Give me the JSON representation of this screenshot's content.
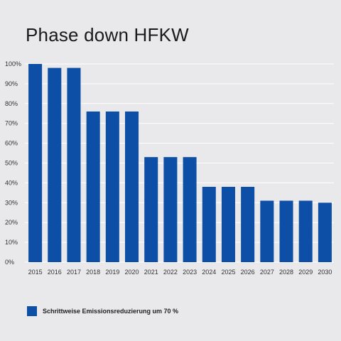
{
  "chart_data": {
    "type": "bar",
    "title": "Phase down HFKW",
    "categories": [
      "2015",
      "2016",
      "2017",
      "2018",
      "2019",
      "2020",
      "2021",
      "2022",
      "2023",
      "2024",
      "2025",
      "2026",
      "2027",
      "2028",
      "2029",
      "2030"
    ],
    "series": [
      {
        "name": "Schrittweise Emissionsreduzierung um 70 %",
        "values": [
          100,
          98,
          98,
          76,
          76,
          76,
          53,
          53,
          53,
          38,
          38,
          38,
          31,
          31,
          31,
          30
        ]
      }
    ],
    "y_ticks": [
      "0%",
      "10%",
      "20%",
      "30%",
      "40%",
      "50%",
      "60%",
      "70%",
      "80%",
      "90%",
      "100%"
    ],
    "ylim": [
      0,
      100
    ],
    "grid": true,
    "legend_position": "bottom-left",
    "colors": {
      "bar": "#0d4fa6",
      "grid": "#ffffff",
      "background": "#e9e9ec"
    }
  }
}
